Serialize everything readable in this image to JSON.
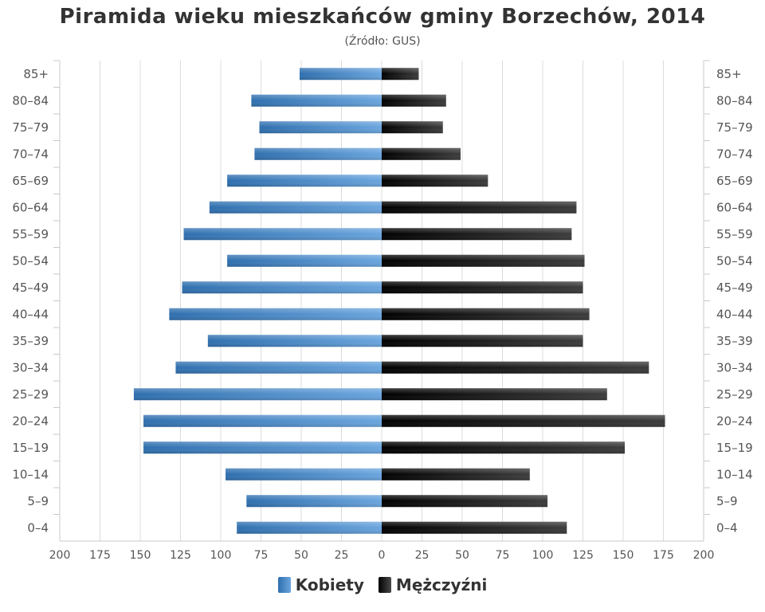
{
  "title": "Piramida wieku mieszkańców gminy Borzechów, 2014",
  "subtitle": "(Źródło: GUS)",
  "chart_data": {
    "type": "bar",
    "orientation": "horizontal-pyramid",
    "categories": [
      "85+",
      "80–84",
      "75–79",
      "70–74",
      "65–69",
      "60–64",
      "55–59",
      "50–54",
      "45–49",
      "40–44",
      "35–39",
      "30–34",
      "25–29",
      "20–24",
      "15–19",
      "10–14",
      "5–9",
      "0–4"
    ],
    "series": [
      {
        "name": "Kobiety",
        "color": "#4a88c9",
        "side": "left",
        "values": [
          51,
          81,
          76,
          79,
          96,
          107,
          123,
          96,
          124,
          132,
          108,
          128,
          154,
          148,
          148,
          97,
          84,
          90
        ]
      },
      {
        "name": "Mężczyźni",
        "color": "#1a1a1a",
        "side": "right",
        "values": [
          23,
          40,
          38,
          49,
          66,
          121,
          118,
          126,
          125,
          129,
          125,
          166,
          140,
          176,
          151,
          92,
          103,
          115
        ]
      }
    ],
    "xlim": [
      -200,
      200
    ],
    "x_ticks": [
      200,
      175,
      150,
      125,
      100,
      75,
      50,
      25,
      0,
      25,
      50,
      75,
      100,
      125,
      150,
      175,
      200
    ],
    "grid": true,
    "legend": "bottom-center"
  }
}
